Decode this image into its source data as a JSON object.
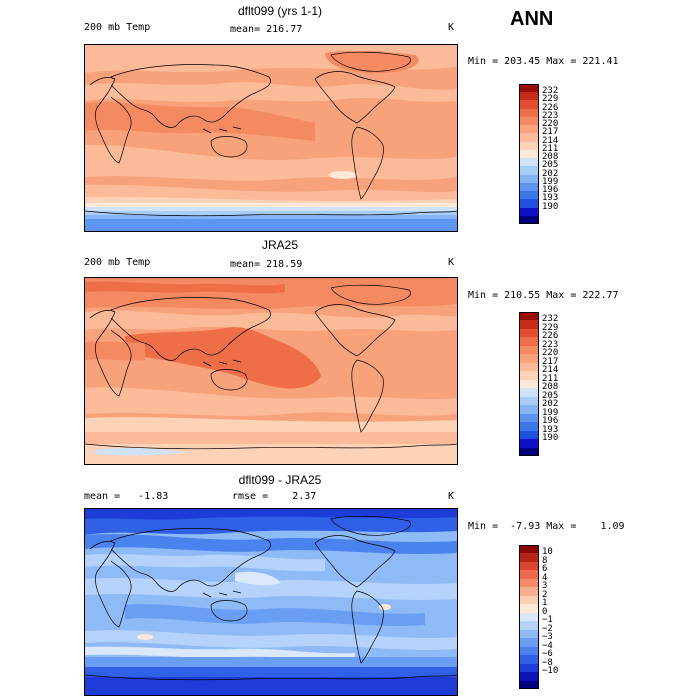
{
  "season": "ANN",
  "palettes": {
    "abs": [
      "#00007f",
      "#1010c8",
      "#2050e0",
      "#3c78ea",
      "#5c96f0",
      "#82b4f6",
      "#a8cdf8",
      "#d0e2fa",
      "#fde9d8",
      "#fdd3b8",
      "#fbbb98",
      "#f8a27c",
      "#f48a62",
      "#ee6e48",
      "#e24c30",
      "#c82a18",
      "#9a0c0a"
    ],
    "diff": [
      "#00007f",
      "#0a14b4",
      "#1e3cd8",
      "#3060e6",
      "#4a82ee",
      "#6a9ef2",
      "#8ebaf6",
      "#b4d2fa",
      "#dbe8fb",
      "#fde8d6",
      "#fbcfb0",
      "#f8b08c",
      "#f48c6a",
      "#ee6a4a",
      "#dc4630",
      "#b82418",
      "#8c0606"
    ]
  },
  "panels": [
    {
      "id": "model",
      "title": "dflt099 (yrs 1-1)",
      "left_text": "200 mb Temp",
      "center_text": "mean= 216.77",
      "unit": "K",
      "minmax": "Min = 203.45 Max = 221.41",
      "colorbar_labels": [
        "232",
        "229",
        "226",
        "223",
        "220",
        "217",
        "214",
        "211",
        "208",
        "205",
        "202",
        "199",
        "196",
        "193",
        "190"
      ]
    },
    {
      "id": "obs",
      "title": "JRA25",
      "left_text": "200 mb Temp",
      "center_text": "mean= 218.59",
      "unit": "K",
      "minmax": "Min = 210.55 Max = 222.77",
      "colorbar_labels": [
        "232",
        "229",
        "226",
        "223",
        "220",
        "217",
        "214",
        "211",
        "208",
        "205",
        "202",
        "199",
        "196",
        "193",
        "190"
      ]
    },
    {
      "id": "diff",
      "title": "dflt099 - JRA25",
      "left_text": "mean =   -1.83",
      "center_text": "rmse =    2.37",
      "unit": "K",
      "minmax": "Min =  -7.93 Max =    1.09",
      "colorbar_labels": [
        "10",
        "8",
        "6",
        "4",
        "3",
        "2",
        "1",
        "0",
        "−1",
        "−2",
        "−3",
        "−4",
        "−6",
        "−8",
        "−10"
      ]
    }
  ],
  "chart_data": [
    {
      "type": "heatmap",
      "title": "dflt099 (yrs 1-1)",
      "variable": "200 mb Temp",
      "unit": "K",
      "mean": 216.77,
      "min": 203.45,
      "max": 221.41,
      "contour_levels": [
        190,
        193,
        196,
        199,
        202,
        205,
        208,
        211,
        214,
        217,
        220,
        223,
        226,
        229,
        232
      ]
    },
    {
      "type": "heatmap",
      "title": "JRA25",
      "variable": "200 mb Temp",
      "unit": "K",
      "mean": 218.59,
      "min": 210.55,
      "max": 222.77,
      "contour_levels": [
        190,
        193,
        196,
        199,
        202,
        205,
        208,
        211,
        214,
        217,
        220,
        223,
        226,
        229,
        232
      ]
    },
    {
      "type": "heatmap",
      "title": "dflt099 - JRA25",
      "unit": "K",
      "mean": -1.83,
      "rmse": 2.37,
      "min": -7.93,
      "max": 1.09,
      "contour_levels": [
        -10,
        -8,
        -6,
        -4,
        -3,
        -2,
        -1,
        0,
        1,
        2,
        3,
        4,
        6,
        8,
        10
      ]
    }
  ]
}
